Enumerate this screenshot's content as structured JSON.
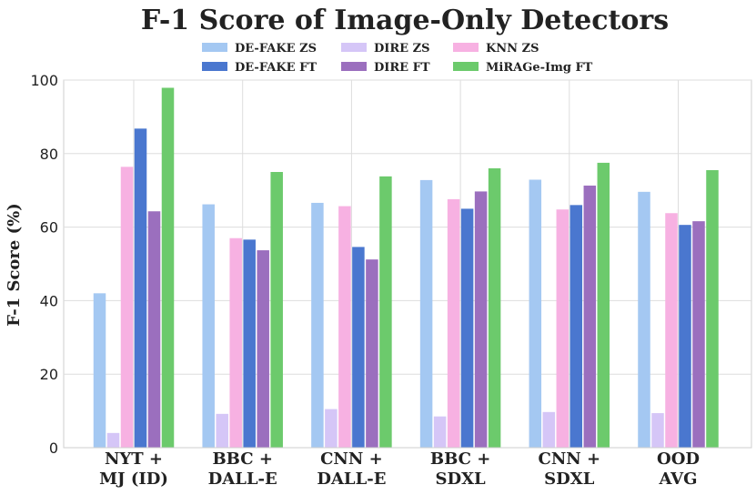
{
  "chart_data": {
    "type": "bar",
    "title": "F-1 Score of Image-Only Detectors",
    "xlabel": "",
    "ylabel": "F-1 Score (%)",
    "ylim": [
      0,
      100
    ],
    "yticks": [
      0,
      20,
      40,
      60,
      80,
      100
    ],
    "grid": true,
    "legend_position": "top",
    "categories": [
      [
        "NYT +",
        "MJ (ID)"
      ],
      [
        "BBC +",
        "DALL-E"
      ],
      [
        "CNN +",
        "DALL-E"
      ],
      [
        "BBC +",
        "SDXL"
      ],
      [
        "CNN +",
        "SDXL"
      ],
      [
        "OOD",
        "AVG"
      ]
    ],
    "series": [
      {
        "name": "DE-FAKE ZS",
        "color": "#a4c8f2",
        "values": [
          42.0,
          66.2,
          66.6,
          72.8,
          72.9,
          69.6
        ]
      },
      {
        "name": "DIRE ZS",
        "color": "#d5c6f7",
        "values": [
          4.0,
          9.2,
          10.5,
          8.5,
          9.7,
          9.4
        ]
      },
      {
        "name": "KNN ZS",
        "color": "#f7b1e2",
        "values": [
          76.4,
          57.0,
          65.7,
          67.6,
          64.8,
          63.8
        ]
      },
      {
        "name": "DE-FAKE FT",
        "color": "#4a77cf",
        "values": [
          86.8,
          56.6,
          54.6,
          65.0,
          66.0,
          60.6
        ]
      },
      {
        "name": "DIRE FT",
        "color": "#9b6fbe",
        "values": [
          64.3,
          53.7,
          51.2,
          69.7,
          71.3,
          61.6
        ]
      },
      {
        "name": "MiRAGe-Img FT",
        "color": "#6cca6c",
        "values": [
          97.9,
          75.0,
          73.8,
          76.0,
          77.5,
          75.5
        ]
      }
    ]
  }
}
